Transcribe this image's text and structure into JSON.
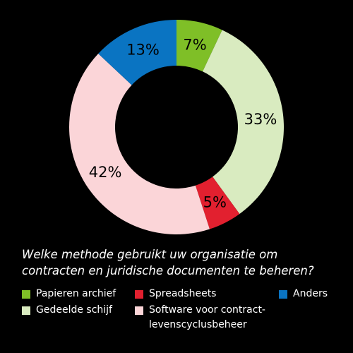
{
  "chart_data": {
    "type": "pie",
    "donut": true,
    "title": "Welke methode gebruikt uw organisatie om contracten en juridische documenten te beheren?",
    "title_lines": [
      "Welke methode gebruikt uw organisatie om",
      "contracten en juridische documenten te beheren?"
    ],
    "slices": [
      {
        "name": "Papieren archief",
        "value": 7,
        "label": "7%",
        "color": "#7fbf27"
      },
      {
        "name": "Gedeelde schijf",
        "value": 33,
        "label": "33%",
        "color": "#d9ebc0"
      },
      {
        "name": "Spreadsheets",
        "value": 5,
        "label": "5%",
        "color": "#e2202f"
      },
      {
        "name": "Software voor contract-levenscyclusbeheer",
        "value": 42,
        "label": "42%",
        "color": "#fbd5d8"
      },
      {
        "name": "Anders",
        "value": 13,
        "label": "13%",
        "color": "#0a74c2"
      }
    ],
    "legend": [
      {
        "lines": [
          "Papieren archief"
        ],
        "color": "#7fbf27"
      },
      {
        "lines": [
          "Gedeelde schijf"
        ],
        "color": "#d9ebc0"
      },
      {
        "lines": [
          "Spreadsheets"
        ],
        "color": "#e2202f"
      },
      {
        "lines": [
          "Software voor contract-",
          "levenscyclusbeheer"
        ],
        "color": "#fbd5d8"
      },
      {
        "lines": [
          "Anders"
        ],
        "color": "#0a74c2"
      }
    ],
    "legend_placement": "bottom"
  },
  "colors": {
    "background": "#000000",
    "text": "#ffffff",
    "label_text": "#000000"
  }
}
